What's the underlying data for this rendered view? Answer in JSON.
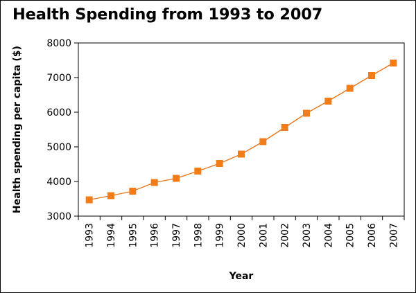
{
  "title": "Health Spending from 1993 to 2007",
  "chart_data": {
    "type": "line",
    "title": "Health Spending from 1993 to 2007",
    "xlabel": "Year",
    "ylabel": "Health spending per capita ($)",
    "ylim": [
      3000,
      8000
    ],
    "yticks": [
      3000,
      4000,
      5000,
      6000,
      7000,
      8000
    ],
    "categories": [
      "1993",
      "1994",
      "1995",
      "1996",
      "1997",
      "1998",
      "1999",
      "2000",
      "2001",
      "2002",
      "2003",
      "2004",
      "2005",
      "2006",
      "2007"
    ],
    "series": [
      {
        "values": [
          3470,
          3590,
          3720,
          3970,
          4090,
          4300,
          4520,
          4790,
          5150,
          5560,
          5970,
          6320,
          6690,
          7060,
          7420
        ]
      }
    ],
    "grid": false,
    "legend": "none",
    "colors": {
      "line": "#e8751a",
      "marker": "#f07d1a"
    }
  }
}
